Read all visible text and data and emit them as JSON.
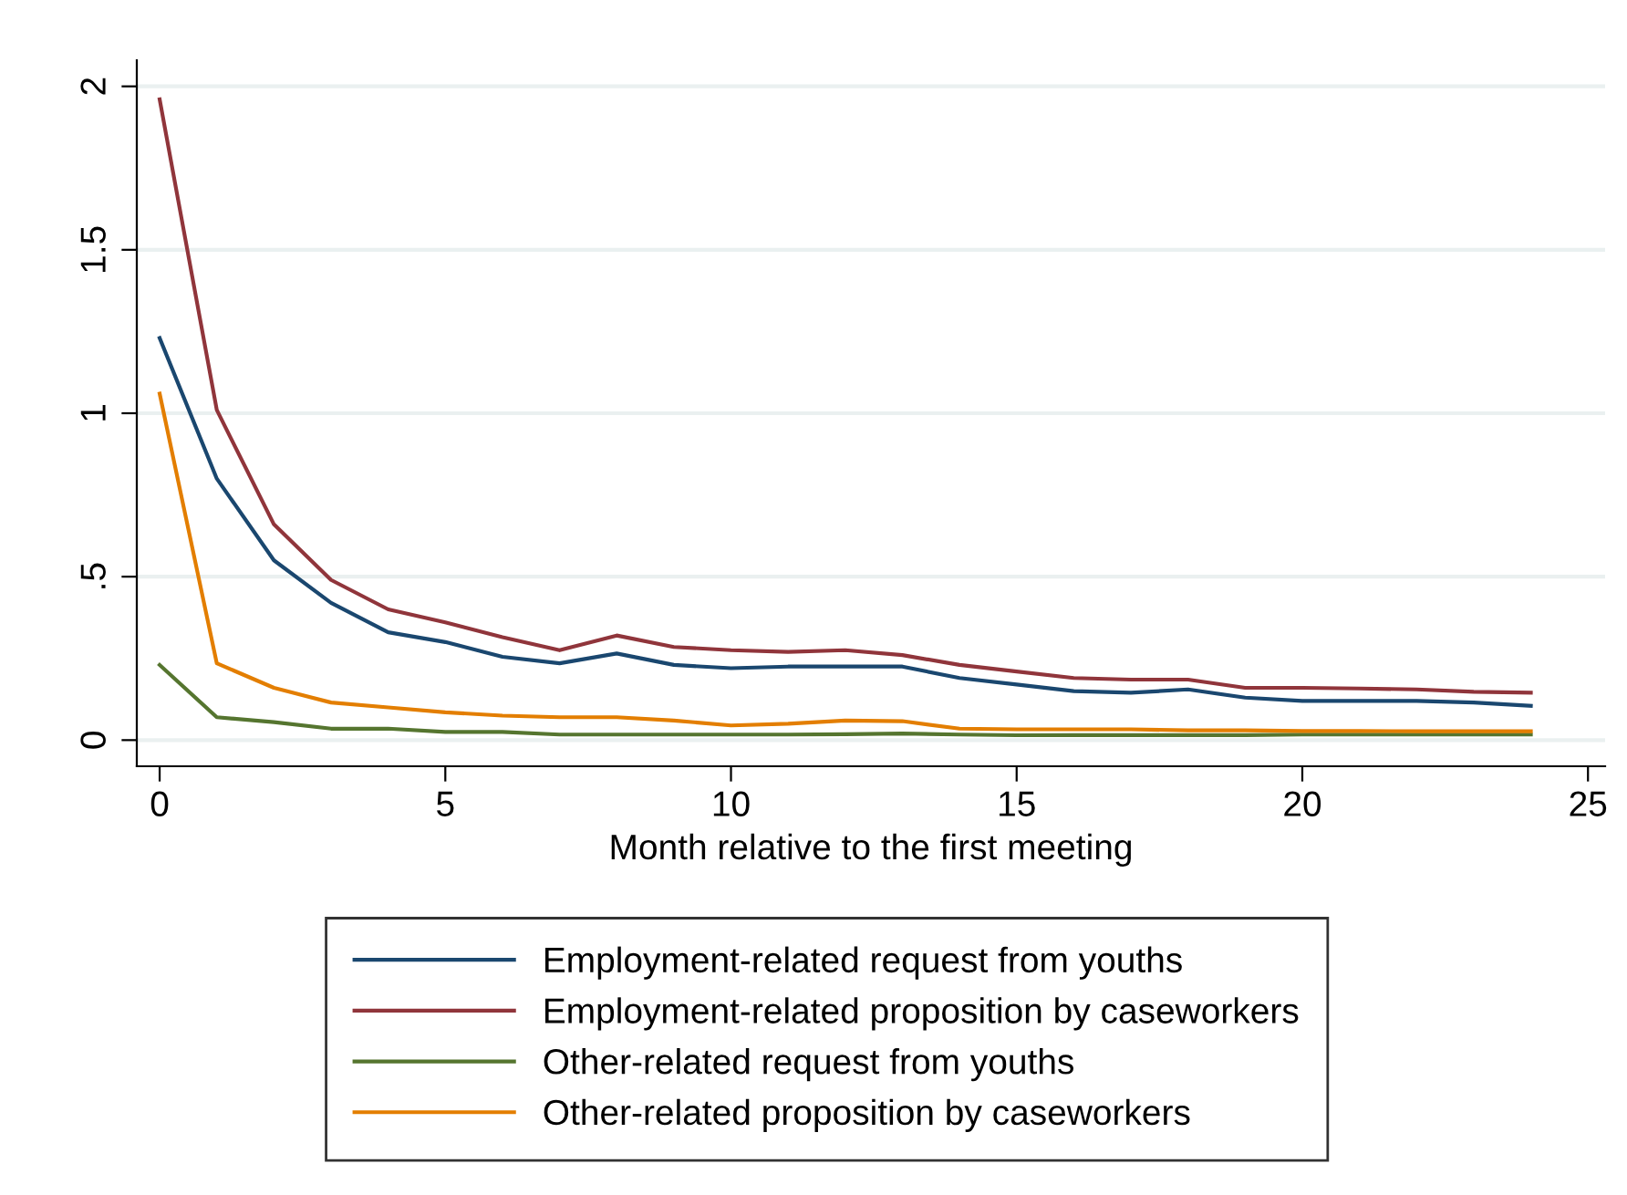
{
  "chart_data": {
    "type": "line",
    "xlabel": "Month relative to the first meeting",
    "x": [
      0,
      1,
      2,
      3,
      4,
      5,
      6,
      7,
      8,
      9,
      10,
      11,
      12,
      13,
      14,
      15,
      16,
      17,
      18,
      19,
      20,
      21,
      22,
      23,
      24
    ],
    "series": [
      {
        "name": "Employment-related request from youths",
        "color": "#1a476f",
        "values": [
          1.23,
          0.8,
          0.55,
          0.42,
          0.33,
          0.3,
          0.255,
          0.235,
          0.265,
          0.23,
          0.22,
          0.225,
          0.225,
          0.225,
          0.19,
          0.17,
          0.15,
          0.145,
          0.155,
          0.13,
          0.12,
          0.12,
          0.12,
          0.115,
          0.105
        ]
      },
      {
        "name": "Employment-related proposition by caseworkers",
        "color": "#90353b",
        "values": [
          1.96,
          1.01,
          0.66,
          0.49,
          0.4,
          0.36,
          0.315,
          0.275,
          0.32,
          0.285,
          0.275,
          0.27,
          0.275,
          0.26,
          0.23,
          0.21,
          0.19,
          0.185,
          0.185,
          0.16,
          0.16,
          0.158,
          0.155,
          0.148,
          0.145
        ]
      },
      {
        "name": "Other-related request from youths",
        "color": "#55752f",
        "values": [
          0.23,
          0.07,
          0.055,
          0.035,
          0.035,
          0.025,
          0.025,
          0.017,
          0.017,
          0.017,
          0.017,
          0.017,
          0.018,
          0.02,
          0.017,
          0.015,
          0.015,
          0.015,
          0.015,
          0.015,
          0.017,
          0.017,
          0.017,
          0.017,
          0.017
        ]
      },
      {
        "name": "Other-related proposition by caseworkers",
        "color": "#e37e00",
        "values": [
          1.06,
          0.235,
          0.16,
          0.115,
          0.1,
          0.085,
          0.075,
          0.07,
          0.07,
          0.06,
          0.045,
          0.05,
          0.06,
          0.058,
          0.035,
          0.033,
          0.033,
          0.033,
          0.03,
          0.03,
          0.028,
          0.028,
          0.027,
          0.027,
          0.027
        ]
      }
    ],
    "xlim": [
      -0.4,
      25.3
    ],
    "xticks": [
      0,
      5,
      10,
      15,
      20,
      25
    ],
    "ylim": [
      -0.08,
      2.08
    ],
    "yticks": [
      0,
      {
        "value": 0.5,
        "label": ".5"
      },
      1,
      1.5,
      2
    ],
    "grid": "y",
    "legend": "bottom",
    "marker": "none",
    "line_style": "solid"
  }
}
